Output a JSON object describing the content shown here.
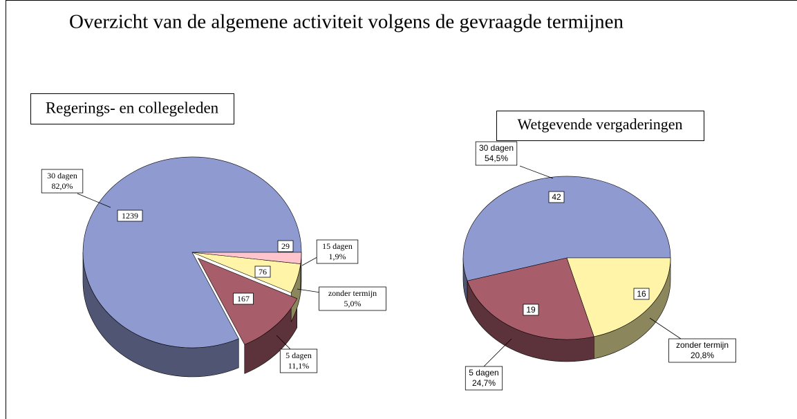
{
  "title": "Overzicht van de algemene activiteit volgens de gevraagde termijnen",
  "chart_data": [
    {
      "type": "pie",
      "title": "Regerings- en collegeleden",
      "categories": [
        "30 dagen",
        "5 dagen",
        "zonder termijn",
        "15 dagen"
      ],
      "values": [
        1239,
        167,
        76,
        29
      ],
      "percent_labels": [
        "82,0%",
        "11,1%",
        "5,0%",
        "1,9%"
      ],
      "colors": [
        "#8f9ad0",
        "#a85d6a",
        "#fff4a8",
        "#ffc4cc"
      ]
    },
    {
      "type": "pie",
      "title": "Wetgevende vergaderingen",
      "categories": [
        "30 dagen",
        "5 dagen",
        "zonder termijn"
      ],
      "values": [
        42,
        19,
        16
      ],
      "percent_labels": [
        "54,5%",
        "24,7%",
        "20,8%"
      ],
      "colors": [
        "#8f9ad0",
        "#a85d6a",
        "#fff4a8"
      ]
    }
  ]
}
